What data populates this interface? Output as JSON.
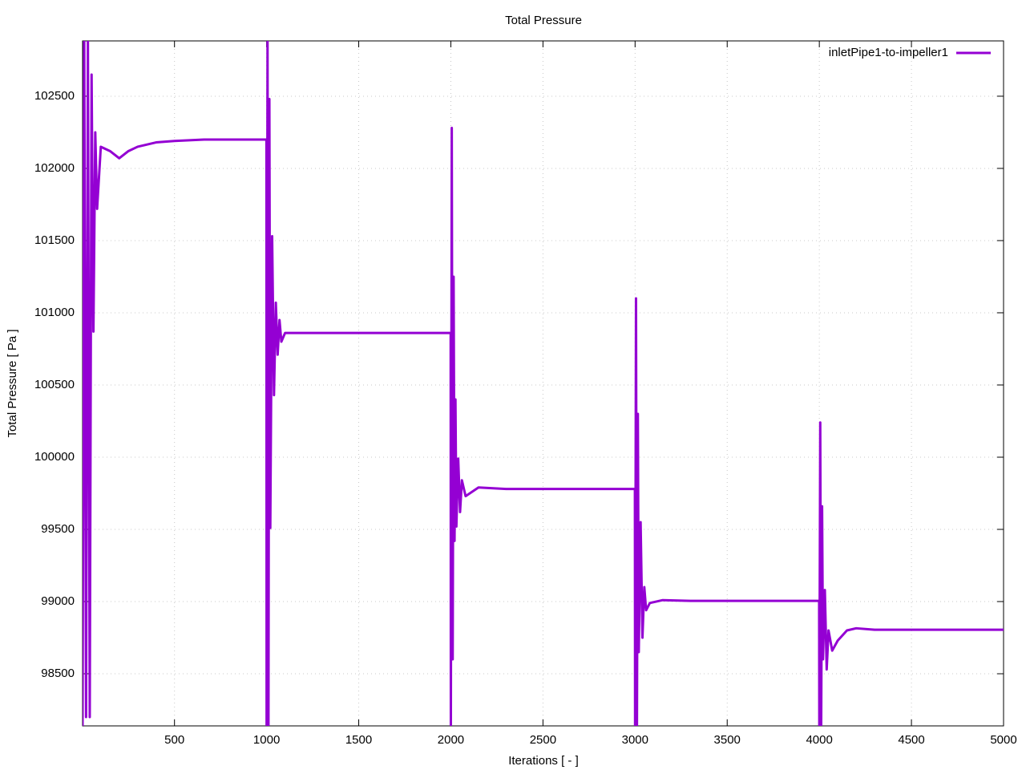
{
  "chart_data": {
    "type": "line",
    "title": "Total Pressure",
    "x_label": "Iterations [ - ]",
    "y_label": "Total Pressure [ Pa ]",
    "x": [
      1,
      10,
      20,
      30,
      40,
      50,
      60,
      70,
      80,
      100,
      150,
      200,
      250,
      300,
      400,
      500,
      660,
      999,
      1000,
      1005,
      1010,
      1015,
      1020,
      1030,
      1040,
      1050,
      1060,
      1070,
      1080,
      1100,
      1200,
      1999,
      2000,
      2005,
      2010,
      2015,
      2020,
      2025,
      2030,
      2040,
      2050,
      2060,
      2080,
      2150,
      2300,
      2999,
      3000,
      3005,
      3010,
      3015,
      3020,
      3030,
      3040,
      3050,
      3060,
      3080,
      3150,
      3300,
      3999,
      4000,
      4005,
      4010,
      4015,
      4020,
      4030,
      4040,
      4050,
      4070,
      4100,
      4150,
      4200,
      4300,
      5000
    ],
    "series": [
      {
        "name": "inletPipe1-to-impeller1",
        "color": "#9400d3",
        "values": [
          98100,
          103000,
          98200,
          102900,
          98200,
          102650,
          100870,
          102250,
          101720,
          102150,
          102120,
          102070,
          102120,
          102150,
          102180,
          102190,
          102200,
          102200,
          98100,
          102900,
          98100,
          102480,
          99510,
          101530,
          100430,
          101070,
          100710,
          100950,
          100800,
          100860,
          100860,
          100860,
          98100,
          102280,
          98600,
          101250,
          99420,
          100400,
          99520,
          99990,
          99620,
          99840,
          99730,
          99790,
          99780,
          99780,
          98100,
          101100,
          98100,
          100300,
          98650,
          99550,
          98750,
          99100,
          98940,
          98990,
          99010,
          99005,
          99005,
          98100,
          100240,
          98100,
          99660,
          98600,
          99080,
          98530,
          98800,
          98660,
          98730,
          98800,
          98815,
          98805,
          98805
        ]
      }
    ],
    "xlim": [
      1,
      5000
    ],
    "ylim": [
      98139,
      102883
    ],
    "xticks": [
      500,
      1000,
      1500,
      2000,
      2500,
      3000,
      3500,
      4000,
      4500,
      5000
    ],
    "yticks": [
      98500,
      99000,
      99500,
      100000,
      100500,
      101000,
      101500,
      102000,
      102500
    ],
    "grid": true,
    "legend": "top-right"
  }
}
